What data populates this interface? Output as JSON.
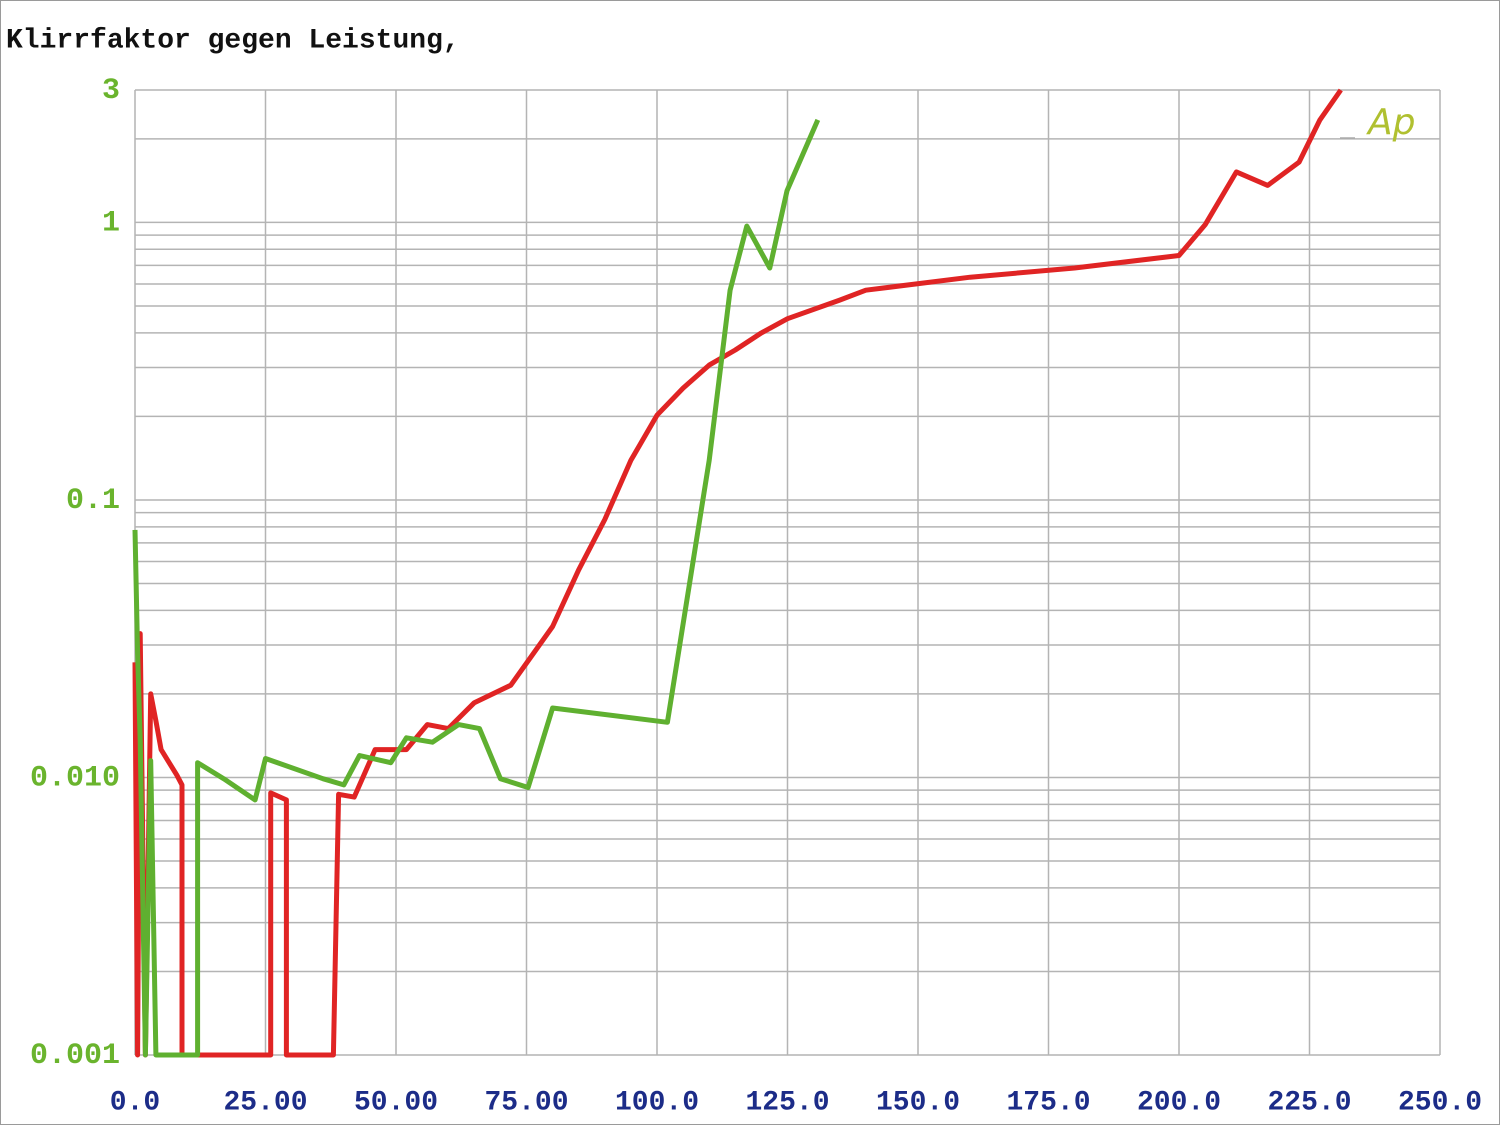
{
  "chart_data": {
    "type": "line",
    "title": "Klirrfaktor gegen Leistung,",
    "annotation": "Ap",
    "xlim": [
      0,
      250
    ],
    "xticks": [
      {
        "value": 0,
        "label": "0.0"
      },
      {
        "value": 25,
        "label": "25.00"
      },
      {
        "value": 50,
        "label": "50.00"
      },
      {
        "value": 75,
        "label": "75.00"
      },
      {
        "value": 100,
        "label": "100.0"
      },
      {
        "value": 125,
        "label": "125.0"
      },
      {
        "value": 150,
        "label": "150.0"
      },
      {
        "value": 175,
        "label": "175.0"
      },
      {
        "value": 200,
        "label": "200.0"
      },
      {
        "value": 225,
        "label": "225.0"
      },
      {
        "value": 250,
        "label": "250.0"
      }
    ],
    "ylim": [
      0.001,
      3
    ],
    "yticks": [
      0.001,
      {
        "value": 0.01,
        "label": "0.010"
      },
      0.1,
      1,
      3
    ],
    "log_y": true,
    "grid": true,
    "series": [
      {
        "color": "#e02424",
        "x": [
          0,
          0.5,
          1,
          2,
          3,
          4,
          5,
          8,
          9,
          9,
          26,
          26,
          29,
          29,
          38,
          39,
          42,
          46,
          52,
          56,
          60,
          65,
          72,
          80,
          85,
          90,
          95,
          100,
          105,
          110,
          115,
          120,
          125,
          135,
          140,
          160,
          180,
          200,
          205,
          211,
          217,
          223,
          227,
          231
        ],
        "values": [
          0.026,
          0.001,
          0.033,
          0.001,
          0.02,
          0.016,
          0.0126,
          0.0102,
          0.0094,
          0.001,
          0.001,
          0.0088,
          0.0083,
          0.001,
          0.001,
          0.0087,
          0.0085,
          0.0126,
          0.0126,
          0.0155,
          0.015,
          0.0186,
          0.0215,
          0.035,
          0.056,
          0.085,
          0.139,
          0.202,
          0.253,
          0.306,
          0.347,
          0.4,
          0.45,
          0.525,
          0.57,
          0.635,
          0.685,
          0.76,
          0.98,
          1.52,
          1.36,
          1.65,
          2.34,
          3
        ]
      },
      {
        "color": "#5fb030",
        "x": [
          0,
          0.5,
          1,
          2,
          3,
          4,
          12,
          12,
          17,
          23,
          25,
          36,
          40,
          43,
          49,
          52,
          57,
          62,
          66,
          70,
          75.3,
          80,
          102,
          110,
          114,
          117.2,
          121.6,
          124.9,
          130.8
        ],
        "values": [
          0.078,
          0.028,
          0.0136,
          0.001,
          0.0115,
          0.001,
          0.001,
          0.0113,
          0.0099,
          0.0083,
          0.0117,
          0.0099,
          0.0094,
          0.012,
          0.0113,
          0.0139,
          0.0134,
          0.0155,
          0.015,
          0.0099,
          0.0092,
          0.0178,
          0.0158,
          0.139,
          0.57,
          0.97,
          0.685,
          1.3,
          2.34
        ]
      }
    ]
  }
}
